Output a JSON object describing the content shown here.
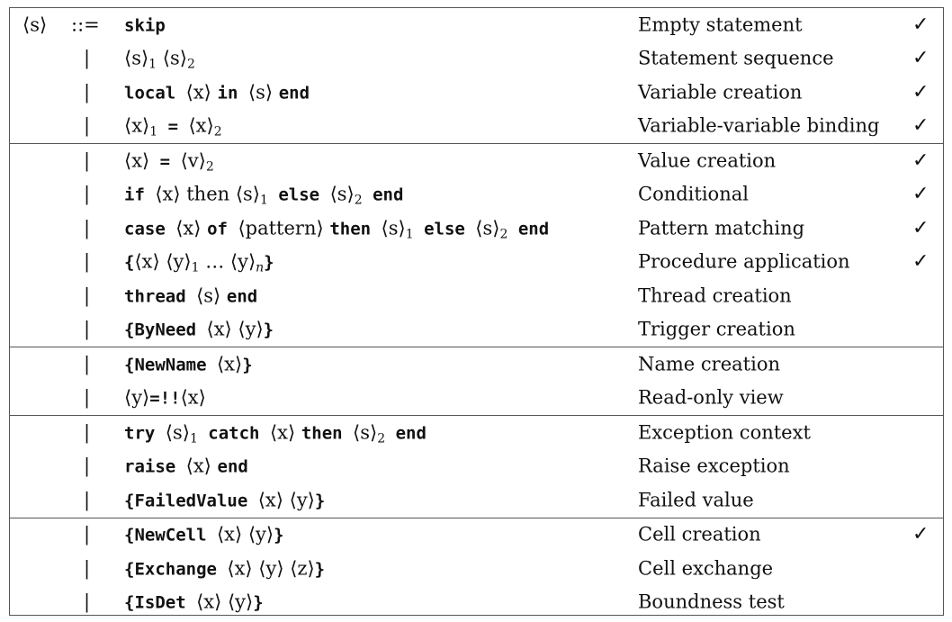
{
  "lhs": "⟨s⟩",
  "derives": "::=",
  "alt": "|",
  "check": "✓",
  "groups": [
    {
      "rows": [
        {
          "production": [
            {
              "t": "k",
              "v": "skip"
            }
          ],
          "description": "Empty statement",
          "checked": true
        },
        {
          "production": [
            {
              "t": "n",
              "v": "⟨s⟩"
            },
            {
              "t": "s",
              "v": "1"
            },
            {
              "t": "n",
              "v": " ⟨s⟩"
            },
            {
              "t": "s",
              "v": "2"
            }
          ],
          "description": "Statement sequence",
          "checked": true
        },
        {
          "production": [
            {
              "t": "k",
              "v": "local "
            },
            {
              "t": "n",
              "v": "⟨x⟩ "
            },
            {
              "t": "k",
              "v": "in "
            },
            {
              "t": "n",
              "v": "⟨s⟩ "
            },
            {
              "t": "k",
              "v": "end"
            }
          ],
          "description": "Variable creation",
          "checked": true
        },
        {
          "production": [
            {
              "t": "n",
              "v": "⟨x⟩"
            },
            {
              "t": "s",
              "v": "1"
            },
            {
              "t": "k",
              "v": " = "
            },
            {
              "t": "n",
              "v": "⟨x⟩"
            },
            {
              "t": "s",
              "v": "2"
            }
          ],
          "description": "Variable-variable binding",
          "checked": true
        }
      ]
    },
    {
      "rows": [
        {
          "production": [
            {
              "t": "n",
              "v": "⟨x⟩"
            },
            {
              "t": "k",
              "v": " = "
            },
            {
              "t": "n",
              "v": "⟨v⟩"
            },
            {
              "t": "s",
              "v": "2"
            }
          ],
          "description": "Value creation",
          "checked": true
        },
        {
          "production": [
            {
              "t": "k",
              "v": "if "
            },
            {
              "t": "n",
              "v": "⟨x⟩ then ⟨s⟩"
            },
            {
              "t": "s",
              "v": "1"
            },
            {
              "t": "k",
              "v": " else "
            },
            {
              "t": "n",
              "v": "⟨s⟩"
            },
            {
              "t": "s",
              "v": "2"
            },
            {
              "t": "k",
              "v": " end"
            }
          ],
          "description": "Conditional",
          "checked": true
        },
        {
          "production": [
            {
              "t": "k",
              "v": "case "
            },
            {
              "t": "n",
              "v": "⟨x⟩ "
            },
            {
              "t": "k",
              "v": "of "
            },
            {
              "t": "n",
              "v": "⟨pattern⟩ "
            },
            {
              "t": "k",
              "v": "then "
            },
            {
              "t": "n",
              "v": "⟨s⟩"
            },
            {
              "t": "s",
              "v": "1"
            },
            {
              "t": "k",
              "v": " else "
            },
            {
              "t": "n",
              "v": "⟨s⟩"
            },
            {
              "t": "s",
              "v": "2"
            },
            {
              "t": "k",
              "v": " end"
            }
          ],
          "description": "Pattern matching",
          "checked": true
        },
        {
          "production": [
            {
              "t": "k",
              "v": "{"
            },
            {
              "t": "n",
              "v": "⟨x⟩ ⟨y⟩"
            },
            {
              "t": "s",
              "v": "1"
            },
            {
              "t": "n",
              "v": " … ⟨y⟩"
            },
            {
              "t": "i",
              "v": "n"
            },
            {
              "t": "k",
              "v": "}"
            }
          ],
          "description": "Procedure application",
          "checked": true
        },
        {
          "production": [
            {
              "t": "k",
              "v": "thread "
            },
            {
              "t": "n",
              "v": "⟨s⟩ "
            },
            {
              "t": "k",
              "v": "end"
            }
          ],
          "description": "Thread creation",
          "checked": false
        },
        {
          "production": [
            {
              "t": "k",
              "v": "{ByNeed "
            },
            {
              "t": "n",
              "v": "⟨x⟩ ⟨y⟩"
            },
            {
              "t": "k",
              "v": "}"
            }
          ],
          "description": "Trigger creation",
          "checked": false
        }
      ]
    },
    {
      "rows": [
        {
          "production": [
            {
              "t": "k",
              "v": "{NewName "
            },
            {
              "t": "n",
              "v": "⟨x⟩"
            },
            {
              "t": "k",
              "v": "}"
            }
          ],
          "description": "Name creation",
          "checked": false
        },
        {
          "production": [
            {
              "t": "n",
              "v": "⟨y⟩"
            },
            {
              "t": "k",
              "v": "=!!"
            },
            {
              "t": "n",
              "v": "⟨x⟩"
            }
          ],
          "description": "Read-only view",
          "checked": false
        }
      ]
    },
    {
      "rows": [
        {
          "production": [
            {
              "t": "k",
              "v": "try "
            },
            {
              "t": "n",
              "v": "⟨s⟩"
            },
            {
              "t": "s",
              "v": "1"
            },
            {
              "t": "k",
              "v": " catch "
            },
            {
              "t": "n",
              "v": "⟨x⟩ "
            },
            {
              "t": "k",
              "v": "then "
            },
            {
              "t": "n",
              "v": "⟨s⟩"
            },
            {
              "t": "s",
              "v": "2"
            },
            {
              "t": "k",
              "v": " end"
            }
          ],
          "description": "Exception context",
          "checked": false
        },
        {
          "production": [
            {
              "t": "k",
              "v": "raise "
            },
            {
              "t": "n",
              "v": "⟨x⟩ "
            },
            {
              "t": "k",
              "v": "end"
            }
          ],
          "description": "Raise exception",
          "checked": false
        },
        {
          "production": [
            {
              "t": "k",
              "v": "{FailedValue "
            },
            {
              "t": "n",
              "v": "⟨x⟩ ⟨y⟩"
            },
            {
              "t": "k",
              "v": "}"
            }
          ],
          "description": "Failed value",
          "checked": false
        }
      ]
    },
    {
      "rows": [
        {
          "production": [
            {
              "t": "k",
              "v": "{NewCell "
            },
            {
              "t": "n",
              "v": "⟨x⟩ ⟨y⟩"
            },
            {
              "t": "k",
              "v": "}"
            }
          ],
          "description": "Cell creation",
          "checked": true
        },
        {
          "production": [
            {
              "t": "k",
              "v": "{Exchange "
            },
            {
              "t": "n",
              "v": "⟨x⟩ ⟨y⟩ ⟨z⟩"
            },
            {
              "t": "k",
              "v": "}"
            }
          ],
          "description": "Cell exchange",
          "checked": false
        },
        {
          "production": [
            {
              "t": "k",
              "v": "{IsDet "
            },
            {
              "t": "n",
              "v": "⟨x⟩ ⟨y⟩"
            },
            {
              "t": "k",
              "v": "}"
            }
          ],
          "description": "Boundness test",
          "checked": false
        }
      ]
    }
  ]
}
